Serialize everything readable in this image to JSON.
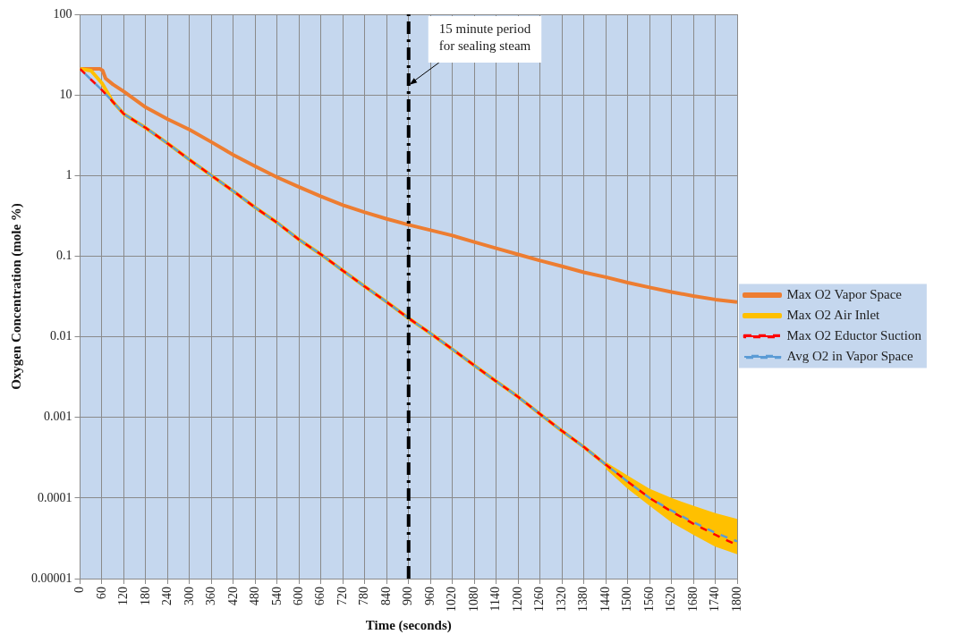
{
  "chart_data": {
    "type": "line",
    "xlabel": "Time (seconds)",
    "ylabel": "Oxygen Concentration (mole %)",
    "x": [
      0,
      30,
      60,
      90,
      120,
      180,
      240,
      300,
      360,
      420,
      480,
      540,
      600,
      660,
      720,
      780,
      840,
      900,
      960,
      1020,
      1080,
      1140,
      1200,
      1260,
      1320,
      1380,
      1440,
      1500,
      1560,
      1620,
      1680,
      1740,
      1800
    ],
    "series": [
      {
        "name": "Max O2 Vapor Space",
        "color": "#ed7d31",
        "line_style": "solid",
        "x": [
          0,
          55,
          62,
          70,
          90,
          120,
          180,
          240,
          300,
          360,
          420,
          480,
          540,
          600,
          660,
          720,
          780,
          840,
          900,
          960,
          1020,
          1080,
          1140,
          1200,
          1260,
          1320,
          1380,
          1440,
          1500,
          1560,
          1620,
          1680,
          1740,
          1800
        ],
        "values": [
          21,
          21,
          20,
          16,
          13.5,
          11,
          7,
          5,
          3.7,
          2.6,
          1.8,
          1.3,
          0.95,
          0.72,
          0.55,
          0.43,
          0.35,
          0.29,
          0.245,
          0.21,
          0.18,
          0.15,
          0.125,
          0.105,
          0.088,
          0.075,
          0.063,
          0.055,
          0.047,
          0.041,
          0.036,
          0.032,
          0.029,
          0.027
        ]
      },
      {
        "name": "Max O2 Air Inlet",
        "color": "#ffc000",
        "line_style": "solid",
        "values": [
          21,
          20,
          14,
          8.2,
          5.8,
          3.9,
          2.5,
          1.57,
          1.0,
          0.64,
          0.4,
          0.26,
          0.16,
          0.105,
          0.066,
          0.042,
          0.027,
          0.017,
          0.011,
          0.007,
          0.0044,
          0.0028,
          0.0018,
          0.0011,
          0.00068,
          0.00043,
          0.00026,
          0.00016,
          0.0001,
          7.5e-05,
          5.5e-05,
          4.5e-05,
          3.5e-05
        ],
        "lower": [
          null,
          null,
          null,
          null,
          null,
          null,
          null,
          null,
          null,
          null,
          null,
          null,
          null,
          null,
          null,
          null,
          null,
          null,
          null,
          null,
          null,
          null,
          null,
          null,
          null,
          null,
          0.00023,
          0.00013,
          8e-05,
          5e-05,
          3.5e-05,
          2.5e-05,
          2e-05
        ],
        "upper": [
          null,
          null,
          null,
          null,
          null,
          null,
          null,
          null,
          null,
          null,
          null,
          null,
          null,
          null,
          null,
          null,
          null,
          null,
          null,
          null,
          null,
          null,
          null,
          null,
          null,
          null,
          0.00028,
          0.00019,
          0.00013,
          0.0001,
          8e-05,
          6.5e-05,
          5.5e-05
        ]
      },
      {
        "name": "Max O2 Eductor Suction",
        "color": "#ff0000",
        "line_style": "dashed",
        "values": [
          21,
          15.5,
          11.5,
          8.2,
          5.8,
          3.9,
          2.5,
          1.57,
          1.0,
          0.64,
          0.4,
          0.26,
          0.16,
          0.105,
          0.066,
          0.042,
          0.027,
          0.017,
          0.011,
          0.007,
          0.0044,
          0.0028,
          0.0018,
          0.0011,
          0.00068,
          0.00043,
          0.00026,
          0.00016,
          0.0001,
          6.8e-05,
          4.8e-05,
          3.5e-05,
          2.6e-05
        ]
      },
      {
        "name": "Avg O2 in Vapor Space",
        "color": "#5b9bd5",
        "line_style": "dashed",
        "values": [
          21,
          15.5,
          11.5,
          8.2,
          5.8,
          3.9,
          2.5,
          1.57,
          1.0,
          0.64,
          0.4,
          0.26,
          0.16,
          0.105,
          0.066,
          0.042,
          0.027,
          0.017,
          0.011,
          0.007,
          0.0044,
          0.0028,
          0.0018,
          0.0011,
          0.00068,
          0.00043,
          0.00026,
          0.00016,
          0.0001,
          7e-05,
          5e-05,
          3.7e-05,
          2.9e-05
        ]
      }
    ],
    "log": "y",
    "xlim": [
      0,
      1800
    ],
    "xticks": [
      0,
      60,
      120,
      180,
      240,
      300,
      360,
      420,
      480,
      540,
      600,
      660,
      720,
      780,
      840,
      900,
      960,
      1020,
      1080,
      1140,
      1200,
      1260,
      1320,
      1380,
      1440,
      1500,
      1560,
      1620,
      1680,
      1740,
      1800
    ],
    "ylim": [
      1e-05,
      100
    ],
    "yticks": [
      {
        "value": 1e-05,
        "label": "0.00001"
      },
      0.0001,
      0.001,
      0.01,
      0.1,
      1,
      10,
      100
    ],
    "grid": true,
    "legend": "right",
    "ref_lines": [
      {
        "axis": "x",
        "value": 900,
        "color": "#000000",
        "line_style": "dashdot"
      }
    ],
    "annotations": [
      {
        "text": "15 minute period\nfor sealing steam",
        "x": 900,
        "y": 13
      }
    ]
  }
}
